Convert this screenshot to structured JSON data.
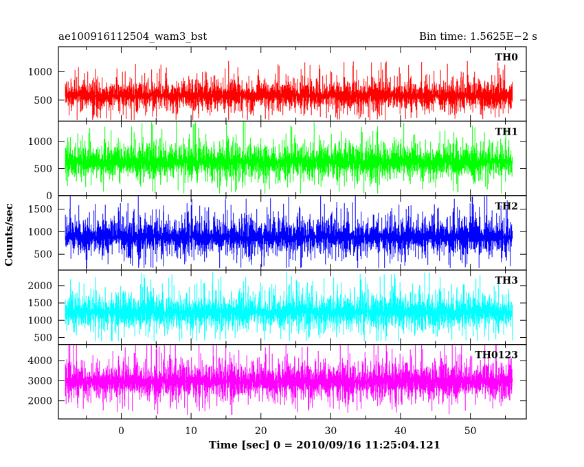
{
  "chart_data": {
    "type": "line",
    "title_left": "ae100916112504_wam3_bst",
    "title_right": "Bin time: 1.5625E−2 s",
    "xlabel": "Time [sec] 0 = 2010/09/16 11:25:04.121",
    "ylabel": "Counts/sec",
    "xlim": [
      -9,
      58
    ],
    "x_range": [
      -8,
      56
    ],
    "xticks": [
      0,
      10,
      20,
      30,
      40,
      50
    ],
    "panels": [
      {
        "name": "TH0",
        "color": "#ff0000",
        "ylim": [
          130,
          1440
        ],
        "yticks": [
          500,
          1000
        ],
        "mean": 580,
        "spread": 160,
        "peak": 1440,
        "floor": 150
      },
      {
        "name": "TH1",
        "color": "#00ff00",
        "ylim": [
          0,
          1380
        ],
        "yticks": [
          0,
          500,
          1000
        ],
        "mean": 620,
        "spread": 190,
        "peak": 1380,
        "floor": 40
      },
      {
        "name": "TH2",
        "color": "#0000ff",
        "ylim": [
          150,
          1800
        ],
        "yticks": [
          500,
          1000,
          1500
        ],
        "mean": 880,
        "spread": 230,
        "peak": 1800,
        "floor": 200
      },
      {
        "name": "TH3",
        "color": "#00ffff",
        "ylim": [
          300,
          2450
        ],
        "yticks": [
          500,
          1000,
          1500,
          2000
        ],
        "mean": 1230,
        "spread": 300,
        "peak": 2400,
        "floor": 400
      },
      {
        "name": "TH0123",
        "color": "#ff00ff",
        "ylim": [
          1100,
          4800
        ],
        "yticks": [
          2000,
          3000,
          4000
        ],
        "mean": 2950,
        "spread": 530,
        "peak": 4800,
        "floor": 1300
      }
    ]
  }
}
